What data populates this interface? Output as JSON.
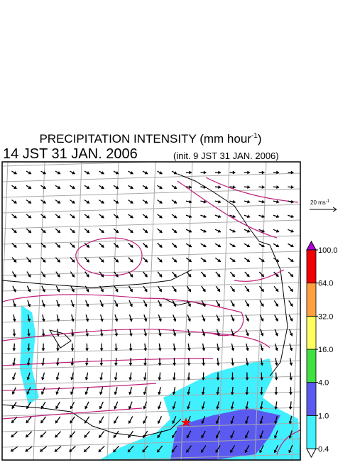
{
  "header": {
    "title": "PRECIPITATION INTENSITY (mm hour",
    "title_sup": "-1",
    "title_end": ")",
    "valid_time": "14 JST 31 JAN. 2006",
    "init_time": "(init. 9 JST 31 JAN. 2006)"
  },
  "vector_scale": {
    "label": "20 ms",
    "label_sup": "-1"
  },
  "colorbar": {
    "levels": [
      {
        "value": 0.4,
        "label": "0.4"
      },
      {
        "value": 1,
        "label": "1.0"
      },
      {
        "value": 4,
        "label": "4.0"
      },
      {
        "value": 16,
        "label": "16.0"
      },
      {
        "value": 32,
        "label": "32.0"
      },
      {
        "value": 64,
        "label": "64.0"
      },
      {
        "value": 100,
        "label": "100.0"
      }
    ],
    "colors": [
      "#40f0ff",
      "#5a5af0",
      "#40e040",
      "#ffff60",
      "#ffa040",
      "#f00000"
    ],
    "over_color": "#b000e0",
    "under_color": "#ffffff"
  }
}
